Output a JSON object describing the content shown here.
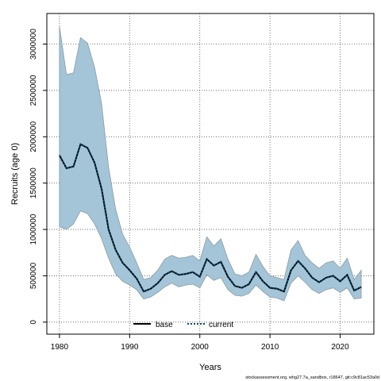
{
  "chart_data": {
    "type": "line",
    "xlabel": "Years",
    "ylabel": "Recruits (age 0)",
    "xlim": [
      1978.2,
      2024.8
    ],
    "ylim": [
      -130000,
      3330000
    ],
    "xticks": [
      1980,
      1990,
      2000,
      2010,
      2020
    ],
    "yticks": [
      0,
      500000,
      1000000,
      1500000,
      2000000,
      2500000,
      3000000
    ],
    "grid": true,
    "legend_placement": "bottom-center",
    "band_color": "#a4c5d7",
    "band_edge_color": "#8a9aa4",
    "base_color": "#000000",
    "current_color": "#0b4a6e",
    "caption": "stockassessment.org, whg27.7a_sandbox, r18647, git:c9c81ac53a0d",
    "x": [
      1980,
      1981,
      1982,
      1983,
      1984,
      1985,
      1986,
      1987,
      1988,
      1989,
      1990,
      1991,
      1992,
      1993,
      1994,
      1995,
      1996,
      1997,
      1998,
      1999,
      2000,
      2001,
      2002,
      2003,
      2004,
      2005,
      2006,
      2007,
      2008,
      2009,
      2010,
      2011,
      2012,
      2013,
      2014,
      2015,
      2016,
      2017,
      2018,
      2019,
      2020,
      2021,
      2022,
      2023
    ],
    "series": [
      {
        "name": "base",
        "style": "solid",
        "values": [
          1800000,
          1660000,
          1680000,
          1920000,
          1880000,
          1720000,
          1440000,
          1000000,
          780000,
          640000,
          560000,
          470000,
          330000,
          360000,
          420000,
          510000,
          550000,
          510000,
          520000,
          540000,
          490000,
          680000,
          610000,
          650000,
          490000,
          390000,
          370000,
          410000,
          540000,
          440000,
          370000,
          360000,
          330000,
          560000,
          660000,
          580000,
          480000,
          430000,
          480000,
          500000,
          440000,
          510000,
          340000,
          380000
        ]
      },
      {
        "name": "current",
        "style": "dotted",
        "values": [
          1800000,
          1660000,
          1680000,
          1920000,
          1880000,
          1720000,
          1440000,
          1000000,
          780000,
          640000,
          560000,
          470000,
          330000,
          360000,
          420000,
          510000,
          550000,
          510000,
          520000,
          540000,
          490000,
          680000,
          610000,
          650000,
          490000,
          390000,
          370000,
          410000,
          540000,
          440000,
          370000,
          360000,
          330000,
          560000,
          660000,
          580000,
          480000,
          430000,
          480000,
          500000,
          440000,
          510000,
          340000,
          380000
        ]
      }
    ],
    "confidence_band": {
      "lower": [
        1030000,
        1000000,
        1060000,
        1200000,
        1170000,
        1060000,
        900000,
        690000,
        520000,
        440000,
        400000,
        350000,
        250000,
        270000,
        320000,
        380000,
        420000,
        380000,
        400000,
        410000,
        370000,
        510000,
        450000,
        480000,
        350000,
        290000,
        280000,
        310000,
        400000,
        330000,
        270000,
        260000,
        230000,
        420000,
        500000,
        430000,
        350000,
        310000,
        350000,
        370000,
        320000,
        370000,
        250000,
        260000
      ],
      "upper": [
        3190000,
        2670000,
        2690000,
        3070000,
        3010000,
        2750000,
        2360000,
        1670000,
        1220000,
        950000,
        810000,
        640000,
        460000,
        480000,
        560000,
        680000,
        720000,
        690000,
        700000,
        720000,
        660000,
        920000,
        820000,
        900000,
        680000,
        520000,
        500000,
        540000,
        730000,
        600000,
        500000,
        480000,
        460000,
        780000,
        880000,
        720000,
        640000,
        580000,
        640000,
        660000,
        580000,
        690000,
        460000,
        560000
      ]
    }
  }
}
